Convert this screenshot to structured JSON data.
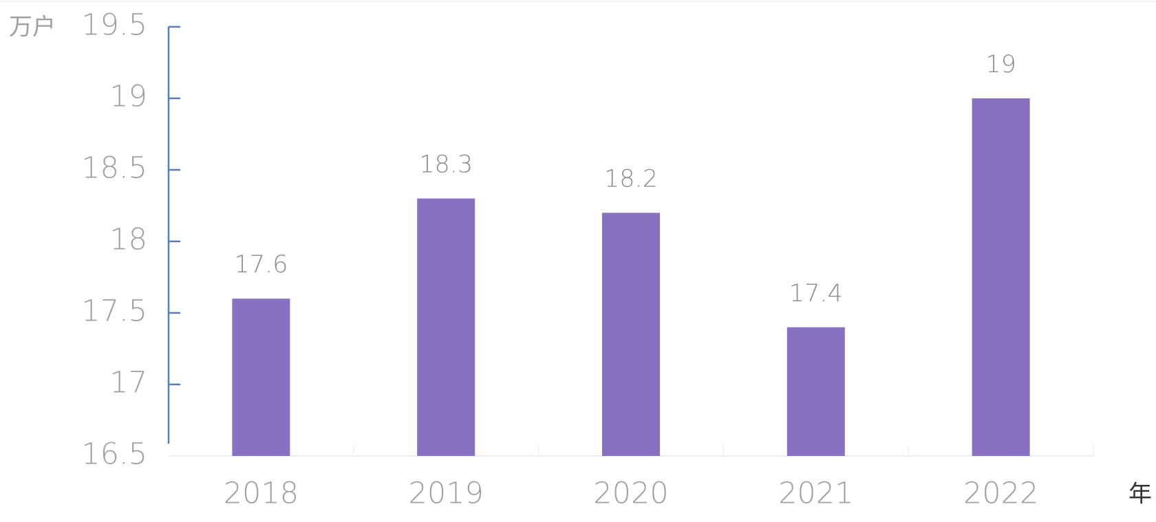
{
  "chart_data": {
    "type": "bar",
    "y_label": "万户",
    "x_label": "年",
    "categories": [
      "2018",
      "2019",
      "2020",
      "2021",
      "2022"
    ],
    "values": [
      17.6,
      18.3,
      18.2,
      17.4,
      19
    ],
    "color": "#8771c0",
    "ylim": [
      16.5,
      19.5
    ],
    "yticks": [
      16.5,
      17,
      17.5,
      18,
      18.5,
      19,
      19.5
    ],
    "data_labels": true
  }
}
